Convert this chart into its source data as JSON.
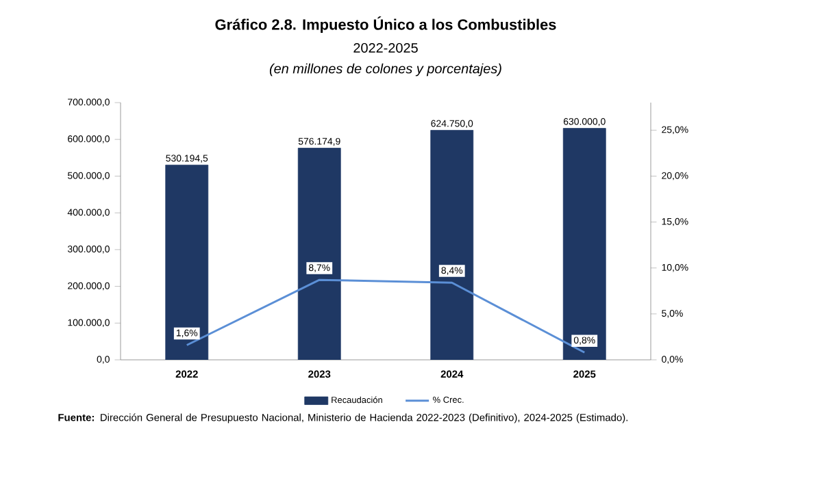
{
  "chart_data": {
    "type": "bar",
    "title": "Gráfico 2.8. Impuesto Único a los Combustibles",
    "subtitle": "2022-2025",
    "annotations": [
      "(en millones de colones y porcentajes)",
      "**Fuente:** Dirección General de Presupuesto Nacional, Ministerio de Hacienda 2022-2023 (Definitivo), 2024-2025 (Estimado)."
    ],
    "categories": [
      "2022",
      "2023",
      "2024",
      "2025"
    ],
    "series": [
      {
        "name": "Recaudación",
        "color": "#1f3864",
        "values": [
          530194.5,
          576174.9,
          624750.0,
          630000.0
        ],
        "value_labels": [
          "530.194,5",
          "576.174,9",
          "624.750,0",
          "630.000,0"
        ]
      },
      {
        "name": "% Crec.",
        "type": "line",
        "axis": "y2",
        "color": "#5b8fd6",
        "values": [
          1.6,
          8.7,
          8.4,
          0.8
        ],
        "value_labels": [
          "1,6%",
          "8,7%",
          "8,4%",
          "0,8%"
        ]
      }
    ],
    "ylim": [
      0,
      700000
    ],
    "yticks": [
      {
        "value": 0,
        "label": "0,0"
      },
      {
        "value": 100000,
        "label": "100.000,0"
      },
      {
        "value": 200000,
        "label": "200.000,0"
      },
      {
        "value": 300000,
        "label": "300.000,0"
      },
      {
        "value": 400000,
        "label": "400.000,0"
      },
      {
        "value": 500000,
        "label": "500.000,0"
      },
      {
        "value": 600000,
        "label": "600.000,0"
      },
      {
        "value": 700000,
        "label": "700.000,0"
      }
    ],
    "y2lim": [
      0,
      28
    ],
    "y2ticks": [
      {
        "value": 0,
        "label": "0,0%"
      },
      {
        "value": 5,
        "label": "5,0%"
      },
      {
        "value": 10,
        "label": "10,0%"
      },
      {
        "value": 15,
        "label": "15,0%"
      },
      {
        "value": 20,
        "label": "20,0%"
      },
      {
        "value": 25,
        "label": "25,0%"
      }
    ],
    "grid": false,
    "legend": "bottom",
    "marker": "none",
    "line_style": "solid"
  }
}
